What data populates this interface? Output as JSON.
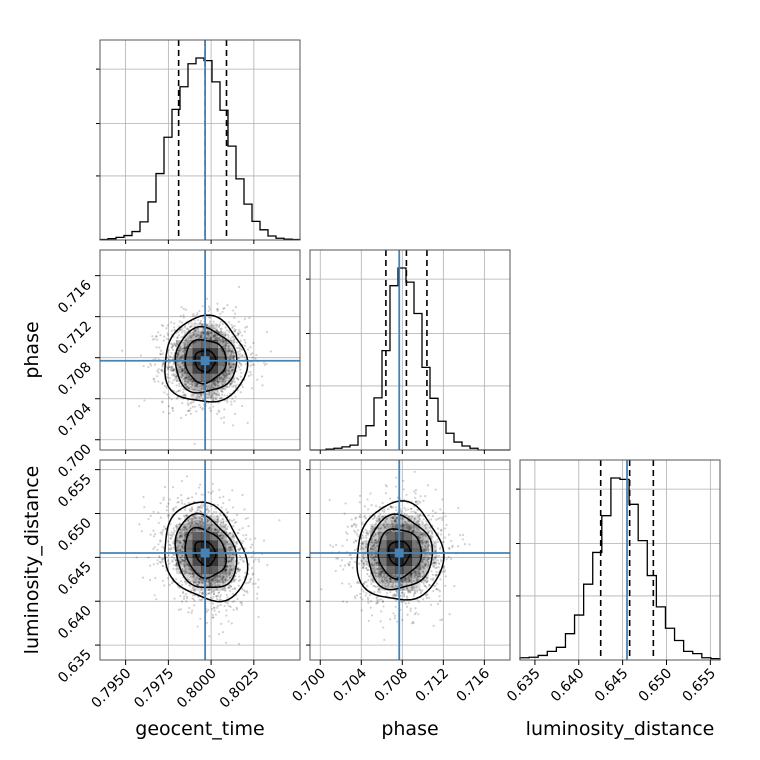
{
  "chart_data": {
    "type": "corner",
    "parameters": [
      "geocent_time",
      "phase",
      "luminosity_distance"
    ],
    "axis_labels": [
      "geocent_time",
      "phase",
      "luminosity_distance"
    ],
    "ranges": {
      "geocent_time": [
        0.7935,
        0.8052
      ],
      "phase": [
        0.699,
        0.7185
      ],
      "luminosity_distance": [
        0.6333,
        0.6561
      ]
    },
    "ticks": {
      "geocent_time": [
        "0.7950",
        "0.7975",
        "0.8000",
        "0.8025"
      ],
      "phase": [
        "0.700",
        "0.704",
        "0.708",
        "0.712",
        "0.716"
      ],
      "luminosity_distance": [
        "0.635",
        "0.640",
        "0.645",
        "0.650",
        "0.655"
      ]
    },
    "truths": {
      "geocent_time": 0.79965,
      "phase": 0.7077,
      "luminosity_distance": 0.6455
    },
    "quantiles": {
      "geocent_time": [
        0.7981,
        0.79965,
        0.8009
      ],
      "phase": [
        0.7064,
        0.7084,
        0.7104
      ],
      "luminosity_distance": [
        0.6425,
        0.6458,
        0.6485
      ]
    },
    "histograms": {
      "geocent_time": {
        "edges_range": [
          0.7935,
          0.8052
        ],
        "counts": [
          1,
          3,
          6,
          10,
          19,
          41,
          86,
          150,
          232,
          295,
          346,
          398,
          411,
          405,
          357,
          293,
          212,
          138,
          81,
          42,
          23,
          9,
          4,
          2,
          1
        ]
      },
      "phase": {
        "edges_range": [
          0.699,
          0.7185
        ],
        "counts": [
          0,
          0,
          2,
          4,
          7,
          11,
          32,
          55,
          118,
          225,
          372,
          412,
          380,
          309,
          187,
          117,
          65,
          38,
          18,
          9,
          4,
          0,
          0,
          0,
          0
        ]
      },
      "luminosity_distance": {
        "edges_range": [
          0.6333,
          0.6561
        ],
        "counts": [
          5,
          6,
          10,
          19,
          28,
          58,
          99,
          167,
          237,
          318,
          401,
          398,
          343,
          263,
          186,
          117,
          70,
          43,
          19,
          14,
          5,
          3
        ]
      }
    },
    "pairs": [
      {
        "x": "geocent_time",
        "y": "phase",
        "center": [
          0.79965,
          0.7077
        ],
        "sigma": [
          0.0012,
          0.0021
        ],
        "rho": 0.0
      },
      {
        "x": "geocent_time",
        "y": "luminosity_distance",
        "center": [
          0.79965,
          0.6455
        ],
        "sigma": [
          0.0012,
          0.0028
        ],
        "rho": -0.22
      },
      {
        "x": "phase",
        "y": "luminosity_distance",
        "center": [
          0.7077,
          0.6455
        ],
        "sigma": [
          0.0021,
          0.0028
        ],
        "rho": 0.0
      }
    ],
    "contour_levels_sigma": [
      0.5,
      1.0,
      1.5,
      2.0
    ],
    "colors": {
      "truth": "#4682b4",
      "histogram": "#000000",
      "grid": "#b0b0b0",
      "density": "#000000"
    }
  }
}
